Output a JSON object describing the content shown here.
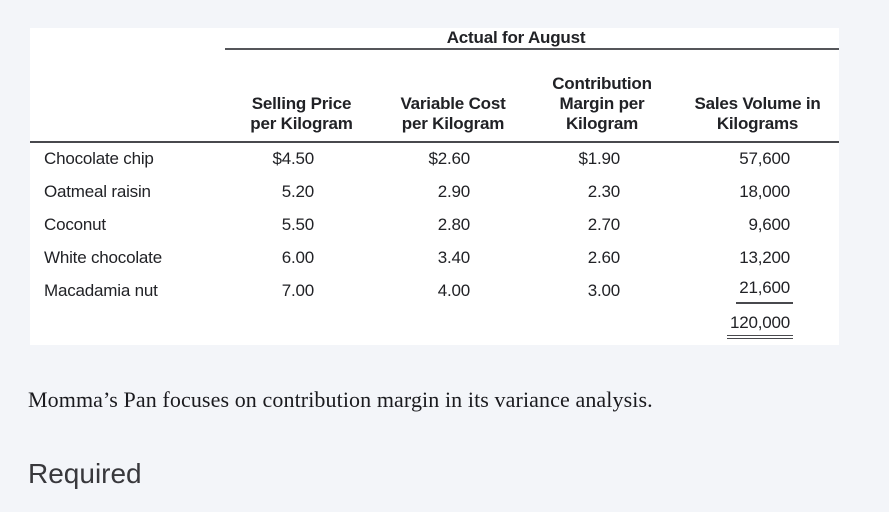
{
  "page": {
    "background_color": "#f3f5f9",
    "panel_color": "#ffffff",
    "rule_color": "#48494d",
    "text_color": "#212226"
  },
  "table": {
    "spanning_header": "Actual for August",
    "column_headers": {
      "selling_price": [
        "Selling Price",
        "per Kilogram"
      ],
      "variable_cost": [
        "Variable Cost",
        "per Kilogram"
      ],
      "contribution_margin": [
        "Contribution",
        "Margin per",
        "Kilogram"
      ],
      "sales_volume": [
        "Sales Volume in",
        "Kilograms"
      ]
    },
    "rows": [
      {
        "product": "Chocolate chip",
        "selling_price": "$4.50",
        "variable_cost": "$2.60",
        "contribution_margin": "$1.90",
        "sales_volume": "57,600"
      },
      {
        "product": "Oatmeal raisin",
        "selling_price": "5.20",
        "variable_cost": "2.90",
        "contribution_margin": "2.30",
        "sales_volume": "18,000"
      },
      {
        "product": "Coconut",
        "selling_price": "5.50",
        "variable_cost": "2.80",
        "contribution_margin": "2.70",
        "sales_volume": "9,600"
      },
      {
        "product": "White chocolate",
        "selling_price": "6.00",
        "variable_cost": "3.40",
        "contribution_margin": "2.60",
        "sales_volume": "13,200"
      },
      {
        "product": "Macadamia nut",
        "selling_price": "7.00",
        "variable_cost": "4.00",
        "contribution_margin": "3.00",
        "sales_volume": "21,600"
      }
    ],
    "total_sales_volume": "120,000"
  },
  "narrative": {
    "paragraph": "Momma’s Pan focuses on contribution margin in its variance analysis.",
    "required_label": "Required"
  }
}
